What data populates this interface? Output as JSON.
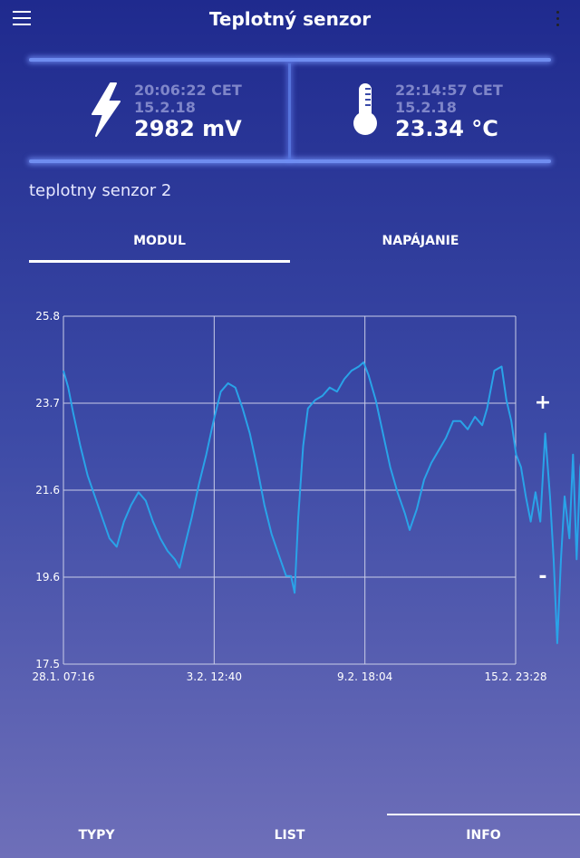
{
  "appbar": {
    "title": "Teplotný senzor",
    "menu_icon": "menu-icon",
    "more_icon": "more-vertical-icon"
  },
  "cards": [
    {
      "icon": "lightning-bolt-icon",
      "time": "20:06:22 CET",
      "date": "15.2.18",
      "value": "2982 mV"
    },
    {
      "icon": "thermometer-icon",
      "time": "22:14:57 CET",
      "date": "15.2.18",
      "value": "23.34 °C"
    }
  ],
  "device": {
    "name": "teplotny senzor 2"
  },
  "tabs": [
    {
      "label": "MODUL",
      "active": true
    },
    {
      "label": "NAPÁJANIE",
      "active": false
    }
  ],
  "zoom": {
    "plus": "+",
    "minus": "-"
  },
  "colors": {
    "line": "#29a3e8",
    "grid": "#c9cde8",
    "accent": "#ffffff"
  },
  "chart_data": {
    "type": "line",
    "title": "",
    "xlabel": "",
    "ylabel": "",
    "ylim": [
      17.5,
      25.8
    ],
    "yticks": [
      "25.8",
      "23.7",
      "21.6",
      "19.6",
      "17.5"
    ],
    "xticks": [
      "28.1. 07:16",
      "3.2. 12:40",
      "9.2. 18:04",
      "15.2. 23:28"
    ],
    "xlim_days": [
      0,
      18.68
    ],
    "grid": true,
    "series": [
      {
        "values": [
          [
            0.0,
            24.5
          ],
          [
            0.2,
            24.1
          ],
          [
            0.4,
            23.5
          ],
          [
            0.7,
            22.7
          ],
          [
            1.0,
            22.0
          ],
          [
            1.3,
            21.5
          ],
          [
            1.6,
            21.0
          ],
          [
            1.9,
            20.5
          ],
          [
            2.2,
            20.3
          ],
          [
            2.5,
            20.9
          ],
          [
            2.8,
            21.3
          ],
          [
            3.1,
            21.6
          ],
          [
            3.4,
            21.4
          ],
          [
            3.7,
            20.9
          ],
          [
            4.0,
            20.5
          ],
          [
            4.3,
            20.2
          ],
          [
            4.6,
            20.0
          ],
          [
            4.8,
            19.8
          ],
          [
            5.0,
            20.3
          ],
          [
            5.3,
            21.0
          ],
          [
            5.6,
            21.8
          ],
          [
            5.9,
            22.5
          ],
          [
            6.2,
            23.3
          ],
          [
            6.5,
            24.0
          ],
          [
            6.8,
            24.2
          ],
          [
            7.1,
            24.1
          ],
          [
            7.4,
            23.6
          ],
          [
            7.7,
            23.0
          ],
          [
            8.0,
            22.2
          ],
          [
            8.3,
            21.3
          ],
          [
            8.6,
            20.6
          ],
          [
            8.9,
            20.1
          ],
          [
            9.2,
            19.6
          ],
          [
            9.4,
            19.6
          ],
          [
            9.55,
            19.2
          ],
          [
            9.7,
            21.0
          ],
          [
            9.9,
            22.7
          ],
          [
            10.1,
            23.6
          ],
          [
            10.4,
            23.8
          ],
          [
            10.7,
            23.9
          ],
          [
            11.0,
            24.1
          ],
          [
            11.3,
            24.0
          ],
          [
            11.6,
            24.3
          ],
          [
            11.9,
            24.5
          ],
          [
            12.2,
            24.6
          ],
          [
            12.4,
            24.7
          ],
          [
            12.6,
            24.4
          ],
          [
            12.9,
            23.8
          ],
          [
            13.2,
            23.0
          ],
          [
            13.5,
            22.2
          ],
          [
            13.8,
            21.6
          ],
          [
            14.1,
            21.1
          ],
          [
            14.3,
            20.7
          ],
          [
            14.6,
            21.2
          ],
          [
            14.9,
            21.9
          ],
          [
            15.2,
            22.3
          ],
          [
            15.5,
            22.6
          ],
          [
            15.8,
            22.9
          ],
          [
            16.1,
            23.3
          ],
          [
            16.4,
            23.3
          ],
          [
            16.7,
            23.1
          ],
          [
            17.0,
            23.4
          ],
          [
            17.3,
            23.2
          ],
          [
            17.5,
            23.6
          ],
          [
            17.8,
            24.5
          ],
          [
            18.1,
            24.6
          ],
          [
            18.3,
            23.8
          ],
          [
            18.5,
            23.3
          ],
          [
            18.7,
            22.5
          ],
          [
            18.9,
            22.2
          ],
          [
            19.1,
            21.5
          ],
          [
            19.3,
            20.9
          ],
          [
            19.5,
            21.6
          ],
          [
            19.7,
            20.9
          ],
          [
            19.9,
            23.0
          ],
          [
            20.1,
            21.5
          ],
          [
            20.25,
            20.0
          ],
          [
            20.4,
            18.0
          ],
          [
            20.55,
            20.0
          ],
          [
            20.7,
            21.5
          ],
          [
            20.9,
            20.5
          ],
          [
            21.05,
            22.5
          ],
          [
            21.2,
            20.0
          ],
          [
            21.35,
            22.2
          ],
          [
            21.5,
            22.8
          ],
          [
            21.7,
            21.5
          ],
          [
            21.9,
            19.7
          ],
          [
            22.1,
            19.5
          ],
          [
            22.3,
            21.6
          ],
          [
            22.5,
            20.2
          ],
          [
            22.7,
            23.0
          ],
          [
            22.9,
            23.8
          ],
          [
            23.05,
            23.4
          ]
        ]
      }
    ]
  },
  "bottom_nav": [
    {
      "label": "TYPY"
    },
    {
      "label": "LIST"
    },
    {
      "label": "INFO",
      "active": true
    }
  ]
}
